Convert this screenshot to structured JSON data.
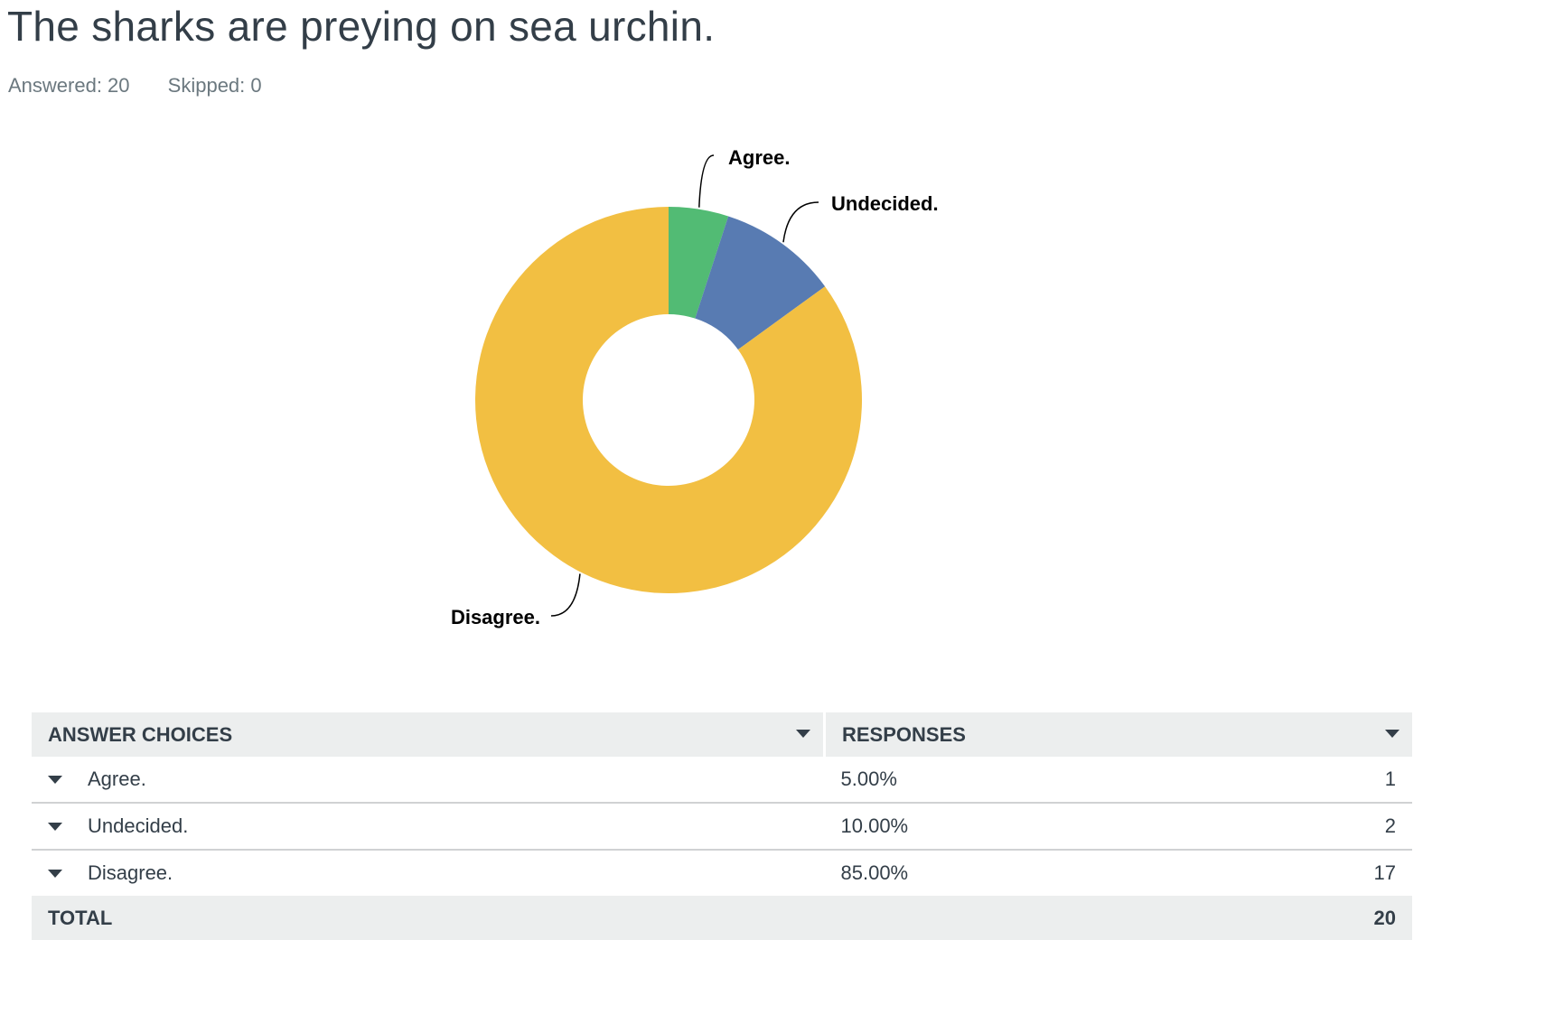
{
  "question": {
    "title": "The sharks are preying on sea urchin.",
    "answered": "Answered: 20",
    "skipped": "Skipped: 0"
  },
  "chart_data": {
    "type": "pie",
    "variant": "donut",
    "categories": [
      "Agree.",
      "Undecided.",
      "Disagree."
    ],
    "values": [
      5.0,
      10.0,
      85.0
    ],
    "unit": "%",
    "colors": [
      "#52bb74",
      "#587bb2",
      "#f2bf42"
    ]
  },
  "table": {
    "headers": {
      "choices": "ANSWER CHOICES",
      "responses": "RESPONSES"
    },
    "rows": [
      {
        "label": "Agree.",
        "percent": "5.00%",
        "count": "1"
      },
      {
        "label": "Undecided.",
        "percent": "10.00%",
        "count": "2"
      },
      {
        "label": "Disagree.",
        "percent": "85.00%",
        "count": "17"
      }
    ],
    "total_label": "TOTAL",
    "total_count": "20"
  }
}
